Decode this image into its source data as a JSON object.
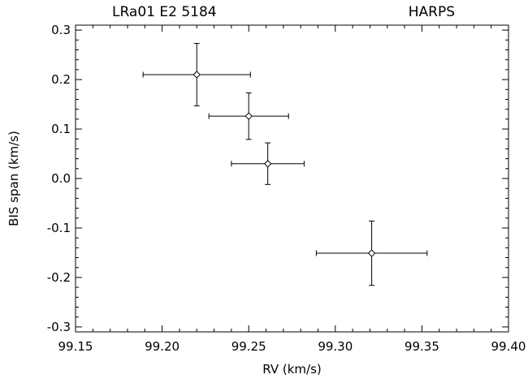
{
  "chart_data": {
    "type": "scatter",
    "title_left": "LRa01 E2 5184",
    "title_right": "HARPS",
    "xlabel": "RV (km/s)",
    "ylabel": "BIS span (km/s)",
    "xlim": [
      99.15,
      99.4
    ],
    "ylim": [
      -0.31,
      0.31
    ],
    "x_ticks": [
      "99.15",
      "99.20",
      "99.25",
      "99.30",
      "99.35",
      "99.40"
    ],
    "y_ticks": [
      "0.3",
      "0.2",
      "0.1",
      "0.0",
      "-0.1",
      "-0.2",
      "-0.3"
    ],
    "grid": false,
    "marker": "diamond",
    "points": [
      {
        "x": 99.22,
        "y": 0.21,
        "xerr": 0.031,
        "yerr": 0.063
      },
      {
        "x": 99.25,
        "y": 0.126,
        "xerr": 0.023,
        "yerr": 0.047
      },
      {
        "x": 99.261,
        "y": 0.03,
        "xerr": 0.021,
        "yerr": 0.042
      },
      {
        "x": 99.321,
        "y": -0.151,
        "xerr": 0.032,
        "yerr": 0.065
      }
    ]
  }
}
